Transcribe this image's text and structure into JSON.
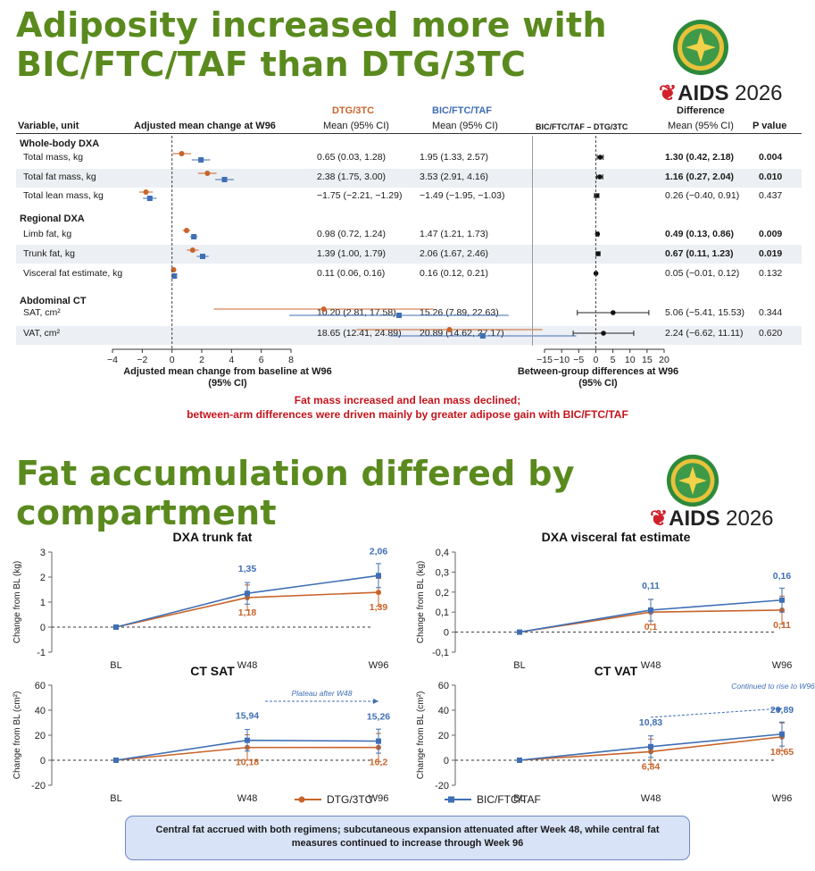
{
  "title1": "Adiposity increased more with BIC/FTC/TAF than DTG/3TC",
  "title2": "Fat accumulation differed by compartment",
  "brand": {
    "name": "AIDS",
    "year": "2026"
  },
  "colors": {
    "dtg": "#c8642a",
    "bic": "#3f6fb5",
    "title": "#5a8a1e",
    "red": "#c4141c"
  },
  "forest": {
    "headers": {
      "variable": "Variable, unit",
      "adjusted": "Adjusted mean change at W96",
      "dtg": "DTG/3TC",
      "bic": "BIC/FTC/TAF",
      "mean_ci": "Mean (95% CI)",
      "diff_title": "Difference",
      "diff_label": "BIC/FTC/TAF – DTG/3TC",
      "pvalue": "P value"
    },
    "sections": [
      "Whole-body DXA",
      "Regional DXA",
      "Abdominal CT"
    ],
    "rows": [
      {
        "label": "Total mass, kg",
        "dtg": 0.65,
        "dtg_lo": 0.03,
        "dtg_hi": 1.28,
        "dtg_text": "0.65 (0.03, 1.28)",
        "bic": 1.95,
        "bic_lo": 1.33,
        "bic_hi": 2.57,
        "bic_text": "1.95 (1.33, 2.57)",
        "diff": 1.3,
        "diff_lo": 0.42,
        "diff_hi": 2.18,
        "diff_text": "1.30 (0.42, 2.18)",
        "p": "0.004",
        "sig": true
      },
      {
        "label": "Total fat mass, kg",
        "dtg": 2.38,
        "dtg_lo": 1.75,
        "dtg_hi": 3.0,
        "dtg_text": "2.38 (1.75, 3.00)",
        "bic": 3.53,
        "bic_lo": 2.91,
        "bic_hi": 4.16,
        "bic_text": "3.53 (2.91, 4.16)",
        "diff": 1.16,
        "diff_lo": 0.27,
        "diff_hi": 2.04,
        "diff_text": "1.16 (0.27, 2.04)",
        "p": "0.010",
        "sig": true
      },
      {
        "label": "Total lean mass, kg",
        "dtg": -1.75,
        "dtg_lo": -2.21,
        "dtg_hi": -1.29,
        "dtg_text": "−1.75 (−2.21, −1.29)",
        "bic": -1.49,
        "bic_lo": -1.95,
        "bic_hi": -1.03,
        "bic_text": "−1.49 (−1.95, −1.03)",
        "diff": 0.26,
        "diff_lo": -0.4,
        "diff_hi": 0.91,
        "diff_text": "0.26 (−0.40, 0.91)",
        "p": "0.437",
        "sig": false
      },
      {
        "label": "Limb fat, kg",
        "dtg": 0.98,
        "dtg_lo": 0.72,
        "dtg_hi": 1.24,
        "dtg_text": "0.98 (0.72, 1.24)",
        "bic": 1.47,
        "bic_lo": 1.21,
        "bic_hi": 1.73,
        "bic_text": "1.47 (1.21, 1.73)",
        "diff": 0.49,
        "diff_lo": 0.13,
        "diff_hi": 0.86,
        "diff_text": "0.49 (0.13, 0.86)",
        "p": "0.009",
        "sig": true
      },
      {
        "label": "Trunk fat, kg",
        "dtg": 1.39,
        "dtg_lo": 1.0,
        "dtg_hi": 1.79,
        "dtg_text": "1.39 (1.00, 1.79)",
        "bic": 2.06,
        "bic_lo": 1.67,
        "bic_hi": 2.46,
        "bic_text": "2.06 (1.67, 2.46)",
        "diff": 0.67,
        "diff_lo": 0.11,
        "diff_hi": 1.23,
        "diff_text": "0.67 (0.11, 1.23)",
        "p": "0.019",
        "sig": true
      },
      {
        "label": "Visceral fat estimate, kg",
        "dtg": 0.11,
        "dtg_lo": 0.06,
        "dtg_hi": 0.16,
        "dtg_text": "0.11 (0.06, 0.16)",
        "bic": 0.16,
        "bic_lo": 0.12,
        "bic_hi": 0.21,
        "bic_text": "0.16 (0.12, 0.21)",
        "diff": 0.05,
        "diff_lo": -0.01,
        "diff_hi": 0.12,
        "diff_text": "0.05 (−0.01, 0.12)",
        "p": "0.132",
        "sig": false
      },
      {
        "label": "SAT, cm²",
        "dtg": 10.2,
        "dtg_lo": 2.81,
        "dtg_hi": 17.58,
        "dtg_text": "10.20 (2.81, 17.58)",
        "bic": 15.26,
        "bic_lo": 7.89,
        "bic_hi": 22.63,
        "bic_text": "15.26 (7.89, 22.63)",
        "diff": 5.06,
        "diff_lo": -5.41,
        "diff_hi": 15.53,
        "diff_text": "5.06 (−5.41, 15.53)",
        "p": "0.344",
        "sig": false
      },
      {
        "label": "VAT, cm²",
        "dtg": 18.65,
        "dtg_lo": 12.41,
        "dtg_hi": 24.89,
        "dtg_text": "18.65 (12.41, 24.89)",
        "bic": 20.89,
        "bic_lo": 14.62,
        "bic_hi": 27.17,
        "bic_text": "20.89 (14.62, 27.17)",
        "diff": 2.24,
        "diff_lo": -6.62,
        "diff_hi": 11.11,
        "diff_text": "2.24 (−6.62, 11.11)",
        "p": "0.620",
        "sig": false
      }
    ],
    "left_axis": {
      "ticks": [
        "−4",
        "−2",
        "0",
        "2",
        "4",
        "6",
        "8"
      ],
      "label1": "Adjusted mean change from baseline at W96",
      "label2": "(95% CI)"
    },
    "right_axis": {
      "ticks": [
        "−15",
        "−10",
        "−5",
        "0",
        "5",
        "10",
        "15",
        "20"
      ],
      "label1": "Between-group differences at W96",
      "label2": "(95% CI)"
    },
    "message1": "Fat mass increased and lean mass declined;",
    "message2": "between-arm differences were driven mainly by greater adipose gain with BIC/FTC/TAF"
  },
  "chart_data": [
    {
      "type": "line",
      "title": "DXA trunk fat",
      "ylabel": "Change from BL (kg)",
      "categories": [
        "BL",
        "W48",
        "W96"
      ],
      "ylim": [
        -1,
        3
      ],
      "yticks": [
        "-1",
        "0",
        "1",
        "2",
        "3"
      ],
      "series": [
        {
          "name": "DTG/3TC",
          "values": [
            0,
            1.18,
            1.39
          ],
          "labels": [
            "",
            "1,18",
            "1,39"
          ]
        },
        {
          "name": "BIC/FTC/TAF",
          "values": [
            0,
            1.35,
            2.06
          ],
          "labels": [
            "",
            "1,35",
            "2,06"
          ]
        }
      ]
    },
    {
      "type": "line",
      "title": "DXA visceral fat estimate",
      "ylabel": "Change from BL (kg)",
      "categories": [
        "BL",
        "W48",
        "W96"
      ],
      "ylim": [
        -0.1,
        0.4
      ],
      "yticks": [
        "-0,1",
        "0",
        "0,1",
        "0,2",
        "0,3",
        "0,4"
      ],
      "series": [
        {
          "name": "DTG/3TC",
          "values": [
            0,
            0.1,
            0.11
          ],
          "labels": [
            "",
            "0,1",
            "0,11"
          ]
        },
        {
          "name": "BIC/FTC/TAF",
          "values": [
            0,
            0.11,
            0.16
          ],
          "labels": [
            "",
            "0,11",
            "0,16"
          ]
        }
      ]
    },
    {
      "type": "line",
      "title": "CT SAT",
      "ylabel": "Change from BL (cm²)",
      "categories": [
        "BL",
        "W48",
        "W96"
      ],
      "ylim": [
        -20,
        60
      ],
      "yticks": [
        "-20",
        "0",
        "20",
        "40",
        "60"
      ],
      "annotation": "Plateau after W48",
      "series": [
        {
          "name": "DTG/3TC",
          "values": [
            0,
            10.18,
            10.2
          ],
          "labels": [
            "",
            "10,18",
            "10,2"
          ]
        },
        {
          "name": "BIC/FTC/TAF",
          "values": [
            0,
            15.94,
            15.26
          ],
          "labels": [
            "",
            "15,94",
            "15,26"
          ]
        }
      ]
    },
    {
      "type": "line",
      "title": "CT VAT",
      "ylabel": "Change from BL (cm²)",
      "categories": [
        "BL",
        "W48",
        "W96"
      ],
      "ylim": [
        -20,
        60
      ],
      "yticks": [
        "-20",
        "0",
        "20",
        "40",
        "60"
      ],
      "annotation": "Continued to rise to W96",
      "series": [
        {
          "name": "DTG/3TC",
          "values": [
            0,
            6.84,
            18.65
          ],
          "labels": [
            "",
            "6,84",
            "18,65"
          ]
        },
        {
          "name": "BIC/FTC/TAF",
          "values": [
            0,
            10.83,
            20.89
          ],
          "labels": [
            "",
            "10,83",
            "20,89"
          ]
        }
      ]
    }
  ],
  "legend": {
    "dtg": "DTG/3TC",
    "bic": "BIC/FTC/TAF"
  },
  "summary": "Central fat accrued with both regimens; subcutaneous expansion attenuated after Week 48, while central fat measures continued to increase through Week 96"
}
